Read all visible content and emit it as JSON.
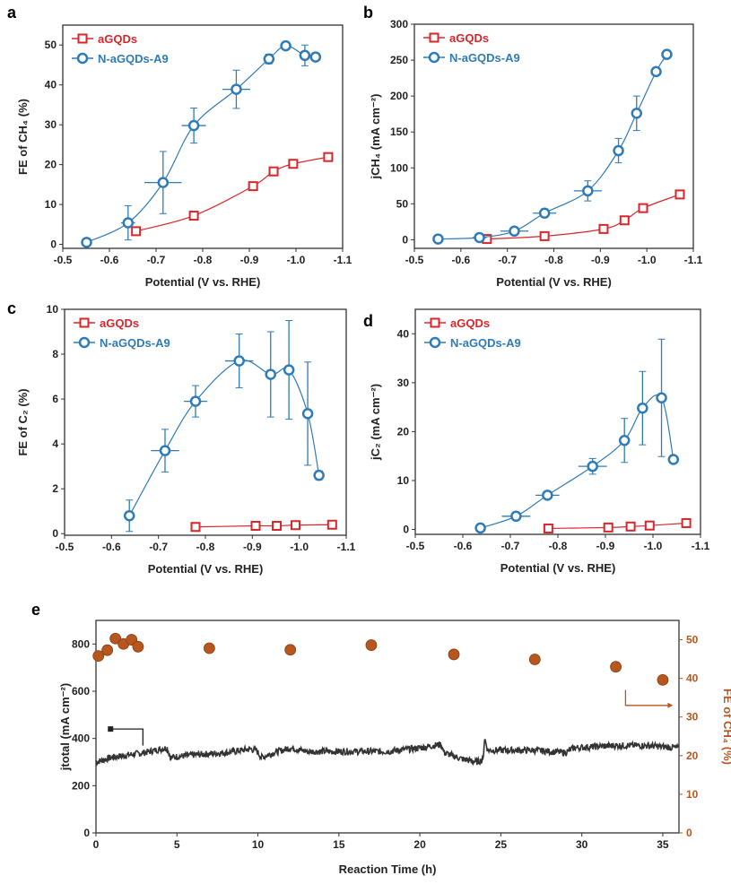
{
  "colors": {
    "red": "#d8262b",
    "blue": "#2f7bb8",
    "current": "#333333",
    "fe": "#b5571f"
  },
  "chart_data": [
    {
      "panel": "a",
      "type": "line",
      "xlabel": "Potential (V vs. RHE)",
      "ylabel": "FE of CH₄ (%)",
      "xlim": [
        -0.5,
        -1.1
      ],
      "ylim": [
        -1,
        55
      ],
      "xticks": [
        "-0.5",
        "-0.6",
        "-0.7",
        "-0.8",
        "-0.9",
        "-1.0",
        "-1.1"
      ],
      "xtick_values": [
        -0.5,
        -0.6,
        -0.7,
        -0.8,
        -0.9,
        -1.0,
        -1.1
      ],
      "yticks": [
        "0",
        "10",
        "20",
        "30",
        "40",
        "50"
      ],
      "ytick_values": [
        0,
        10,
        20,
        30,
        40,
        50
      ],
      "legend": "top-left",
      "series": [
        {
          "name": "aGQDs",
          "marker": "square",
          "color": "#d8262b",
          "x": [
            -0.657,
            -0.781,
            -0.908,
            -0.952,
            -0.994,
            -1.069
          ],
          "y": [
            3.3,
            7.2,
            14.6,
            18.3,
            20.2,
            21.9
          ]
        },
        {
          "name": "N-aGQDs-A9",
          "marker": "circle",
          "color": "#2f7bb8",
          "x": [
            -0.551,
            -0.64,
            -0.715,
            -0.781,
            -0.872,
            -0.942,
            -0.978,
            -1.019,
            -1.042
          ],
          "y": [
            0.5,
            5.4,
            15.5,
            29.8,
            38.9,
            46.5,
            49.8,
            47.4,
            47.0
          ],
          "yerr": [
            0,
            4.3,
            7.8,
            4.4,
            4.8,
            1.2,
            0.5,
            2.6,
            0.5
          ],
          "xerr": [
            0,
            0.015,
            0.04,
            0.026,
            0.03,
            0.008,
            0,
            0.008,
            0
          ]
        }
      ]
    },
    {
      "panel": "b",
      "type": "line",
      "xlabel": "Potential (V vs. RHE)",
      "ylabel": "jCH₄ (mA cm⁻²)",
      "xlim": [
        -0.5,
        -1.1
      ],
      "ylim": [
        -12,
        300
      ],
      "xticks": [
        "-0.5",
        "-0.6",
        "-0.7",
        "-0.8",
        "-0.9",
        "-1.0",
        "-1.1"
      ],
      "xtick_values": [
        -0.5,
        -0.6,
        -0.7,
        -0.8,
        -0.9,
        -1.0,
        -1.1
      ],
      "yticks": [
        "0",
        "50",
        "100",
        "150",
        "200",
        "250",
        "300"
      ],
      "ytick_values": [
        0,
        50,
        100,
        150,
        200,
        250,
        300
      ],
      "legend": "top-left",
      "series": [
        {
          "name": "aGQDs",
          "marker": "square",
          "color": "#d8262b",
          "x": [
            -0.656,
            -0.78,
            -0.907,
            -0.952,
            -0.992,
            -1.071
          ],
          "y": [
            1,
            5,
            15,
            27,
            44,
            63
          ]
        },
        {
          "name": "N-aGQDs-A9",
          "marker": "circle",
          "color": "#2f7bb8",
          "x": [
            -0.551,
            -0.64,
            -0.715,
            -0.78,
            -0.873,
            -0.939,
            -0.978,
            -1.02,
            -1.043
          ],
          "y": [
            1,
            3,
            12,
            37,
            68,
            124,
            176,
            234,
            258
          ],
          "yerr": [
            0,
            2,
            4,
            6,
            14,
            17,
            24,
            4,
            2
          ],
          "xerr": [
            0,
            0.015,
            0.03,
            0.025,
            0.03,
            0.008,
            0.005,
            0.005,
            0
          ]
        }
      ]
    },
    {
      "panel": "c",
      "type": "line",
      "xlabel": "Potential (V vs. RHE)",
      "ylabel": "FE of C₂ (%)",
      "xlim": [
        -0.5,
        -1.1
      ],
      "ylim": [
        -0.07,
        10
      ],
      "xticks": [
        "-0.5",
        "-0.6",
        "-0.7",
        "-0.8",
        "-0.9",
        "-1.0",
        "-1.1"
      ],
      "xtick_values": [
        -0.5,
        -0.6,
        -0.7,
        -0.8,
        -0.9,
        -1.0,
        -1.1
      ],
      "yticks": [
        "0",
        "2",
        "4",
        "6",
        "8",
        "10"
      ],
      "ytick_values": [
        0,
        2,
        4,
        6,
        8,
        10
      ],
      "legend": "top-left",
      "series": [
        {
          "name": "aGQDs",
          "marker": "square",
          "color": "#d8262b",
          "x": [
            -0.779,
            -0.907,
            -0.952,
            -0.992,
            -1.07
          ],
          "y": [
            0.3,
            0.35,
            0.35,
            0.38,
            0.4
          ]
        },
        {
          "name": "N-aGQDs-A9",
          "marker": "circle",
          "color": "#2f7bb8",
          "x": [
            -0.638,
            -0.714,
            -0.779,
            -0.872,
            -0.939,
            -0.978,
            -1.018,
            -1.042
          ],
          "y": [
            0.8,
            3.7,
            5.9,
            7.7,
            7.1,
            7.3,
            5.35,
            2.6
          ],
          "yerr": [
            0.7,
            0.95,
            0.7,
            1.2,
            1.9,
            2.2,
            2.3,
            0.2
          ],
          "xerr": [
            0.01,
            0.03,
            0.025,
            0.03,
            0.005,
            0.005,
            0.005,
            0
          ]
        }
      ]
    },
    {
      "panel": "d",
      "type": "line",
      "xlabel": "Potential (V vs. RHE)",
      "ylabel": "jC₂ (mA cm⁻²)",
      "xlim": [
        -0.5,
        -1.1
      ],
      "ylim": [
        -1,
        45
      ],
      "xticks": [
        "-0.5",
        "-0.6",
        "-0.7",
        "-0.8",
        "-0.9",
        "-1.0",
        "-1.1"
      ],
      "xtick_values": [
        -0.5,
        -0.6,
        -0.7,
        -0.8,
        -0.9,
        -1.0,
        -1.1
      ],
      "yticks": [
        "0",
        "10",
        "20",
        "30",
        "40"
      ],
      "ytick_values": [
        0,
        10,
        20,
        30,
        40
      ],
      "legend": "top-left",
      "series": [
        {
          "name": "aGQDs",
          "marker": "square",
          "color": "#d8262b",
          "x": [
            -0.78,
            -0.906,
            -0.953,
            -0.993,
            -1.07
          ],
          "y": [
            0.2,
            0.4,
            0.6,
            0.8,
            1.3
          ]
        },
        {
          "name": "N-aGQDs-A9",
          "marker": "circle",
          "color": "#2f7bb8",
          "x": [
            -0.637,
            -0.712,
            -0.778,
            -0.873,
            -0.94,
            -0.978,
            -1.018,
            -1.043
          ],
          "y": [
            0.3,
            2.7,
            7.0,
            12.9,
            18.2,
            24.8,
            26.9,
            14.3
          ],
          "yerr": [
            0.3,
            0.5,
            0.6,
            1.6,
            4.5,
            7.5,
            12,
            0.5
          ],
          "xerr": [
            0.01,
            0.03,
            0.025,
            0.03,
            0.005,
            0.005,
            0.005,
            0
          ]
        }
      ]
    },
    {
      "panel": "e",
      "type": "line+scatter",
      "dual_axis": true,
      "xlabel": "Reaction Time (h)",
      "ylabel": "jtotal (mA cm⁻²)",
      "ylabel_right": "FE of CH₄ (%)",
      "xlim": [
        0,
        36
      ],
      "ylim": [
        0,
        900
      ],
      "ylim_right": [
        0,
        55
      ],
      "xticks": [
        "0",
        "5",
        "10",
        "15",
        "20",
        "25",
        "30",
        "35"
      ],
      "xtick_values": [
        0,
        5,
        10,
        15,
        20,
        25,
        30,
        35
      ],
      "yticks": [
        "0",
        "200",
        "400",
        "600",
        "800"
      ],
      "ytick_values": [
        0,
        200,
        400,
        600,
        800
      ],
      "yticks_right": [
        "0",
        "10",
        "20",
        "30",
        "40",
        "50"
      ],
      "ytick_values_right": [
        0,
        10,
        20,
        30,
        40,
        50
      ],
      "series": [
        {
          "axis": "left",
          "kind": "line",
          "color": "#333333",
          "x": [
            0,
            1,
            2,
            3,
            4,
            4.4,
            4.6,
            6,
            8,
            9.5,
            9.9,
            10.2,
            11,
            12,
            13,
            15,
            18,
            20,
            21.3,
            21.5,
            22.5,
            23.5,
            23.9,
            24,
            24.2,
            27,
            29,
            29.5,
            32,
            34,
            36
          ],
          "y": [
            300,
            320,
            330,
            340,
            355,
            360,
            320,
            330,
            340,
            355,
            350,
            320,
            340,
            360,
            345,
            345,
            345,
            360,
            375,
            340,
            315,
            300,
            310,
            400,
            350,
            350,
            340,
            360,
            370,
            370,
            360
          ]
        },
        {
          "axis": "right",
          "kind": "scatter",
          "color": "#b5571f",
          "x": [
            0.15,
            0.7,
            1.2,
            1.7,
            2.2,
            2.6,
            7,
            12,
            17,
            22.1,
            27.1,
            32.1,
            35
          ],
          "y": [
            45.8,
            47.3,
            50.3,
            48.9,
            50.0,
            48.2,
            47.8,
            47.4,
            48.6,
            46.2,
            44.9,
            43.0,
            39.6
          ]
        }
      ]
    }
  ]
}
